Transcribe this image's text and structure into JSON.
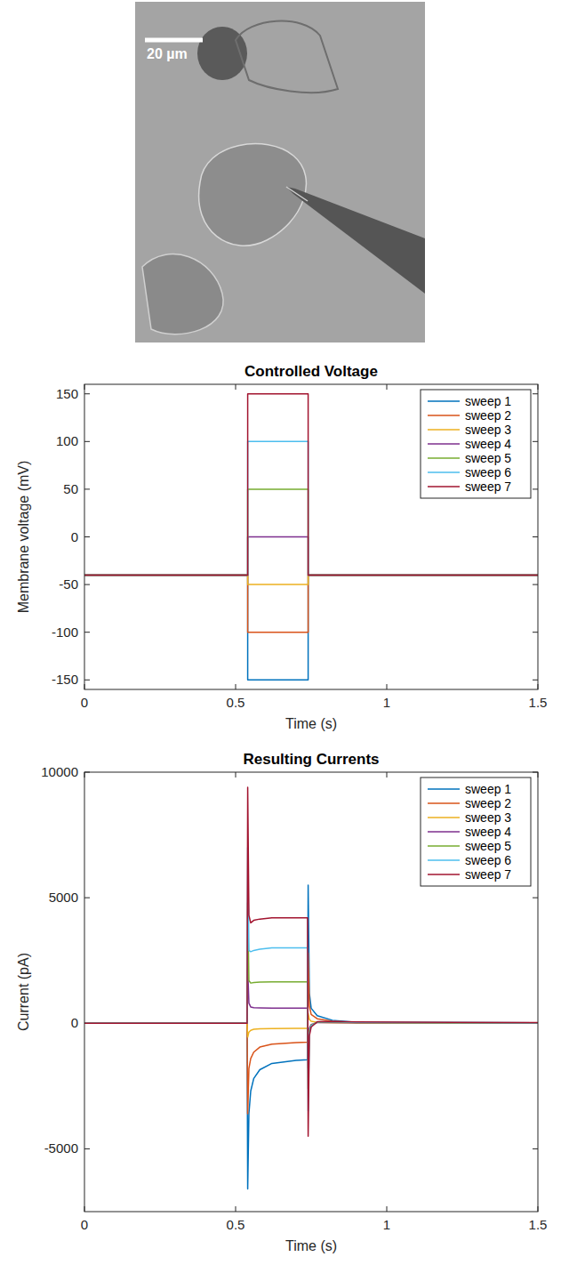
{
  "image": {
    "scale_bar": "20 µm"
  },
  "chart_data": [
    {
      "type": "line",
      "title": "Controlled Voltage",
      "x_label": "Time (s)",
      "y_label": "Membrane voltage (mV)",
      "xlim": [
        0,
        1.5
      ],
      "xticks": [
        0,
        0.5,
        1,
        1.5
      ],
      "ylim": [
        -160,
        160
      ],
      "yticks": [
        -150,
        -100,
        -50,
        0,
        50,
        100,
        150
      ],
      "grid": false,
      "legend": "northeast",
      "x": [
        0,
        0.54,
        0.54,
        0.74,
        0.74,
        1.5
      ],
      "series": [
        {
          "name": "sweep 1",
          "color": "#0072BD",
          "values": [
            -40,
            -40,
            -150,
            -150,
            -40,
            -40
          ]
        },
        {
          "name": "sweep 2",
          "color": "#D95319",
          "values": [
            -40,
            -40,
            -100,
            -100,
            -40,
            -40
          ]
        },
        {
          "name": "sweep 3",
          "color": "#EDB120",
          "values": [
            -40,
            -40,
            -50,
            -50,
            -40,
            -40
          ]
        },
        {
          "name": "sweep 4",
          "color": "#7E2F8E",
          "values": [
            -40,
            -40,
            0,
            0,
            -40,
            -40
          ]
        },
        {
          "name": "sweep 5",
          "color": "#77AC30",
          "values": [
            -40,
            -40,
            50,
            50,
            -40,
            -40
          ]
        },
        {
          "name": "sweep 6",
          "color": "#4DBEEE",
          "values": [
            -40,
            -40,
            100,
            100,
            -40,
            -40
          ]
        },
        {
          "name": "sweep 7",
          "color": "#A2142F",
          "values": [
            -40,
            -40,
            150,
            150,
            -40,
            -40
          ]
        }
      ]
    },
    {
      "type": "line",
      "title": "Resulting Currents",
      "x_label": "Time (s)",
      "y_label": "Current (pA)",
      "xlim": [
        0,
        1.5
      ],
      "xticks": [
        0,
        0.5,
        1,
        1.5
      ],
      "ylim": [
        -7500,
        10000
      ],
      "yticks": [
        -5000,
        0,
        5000,
        10000
      ],
      "grid": false,
      "legend": "northeast",
      "x": [
        0,
        0.538,
        0.54,
        0.544,
        0.55,
        0.56,
        0.58,
        0.62,
        0.7,
        0.738,
        0.74,
        0.744,
        0.75,
        0.77,
        0.82,
        0.9,
        1.5
      ],
      "series": [
        {
          "name": "sweep 1",
          "color": "#0072BD",
          "values": [
            0,
            0,
            -6600,
            -3600,
            -2700,
            -2200,
            -1850,
            -1600,
            -1480,
            -1450,
            5500,
            1200,
            600,
            300,
            120,
            40,
            20
          ]
        },
        {
          "name": "sweep 2",
          "color": "#D95319",
          "values": [
            0,
            0,
            -3600,
            -1800,
            -1400,
            -1150,
            -950,
            -830,
            -770,
            -750,
            2800,
            700,
            350,
            180,
            80,
            30,
            15
          ]
        },
        {
          "name": "sweep 3",
          "color": "#EDB120",
          "values": [
            0,
            0,
            -550,
            -350,
            -280,
            -240,
            -220,
            -210,
            -200,
            -200,
            400,
            150,
            80,
            40,
            20,
            10,
            5
          ]
        },
        {
          "name": "sweep 4",
          "color": "#7E2F8E",
          "values": [
            0,
            0,
            2200,
            800,
            650,
            620,
            610,
            600,
            600,
            600,
            -1800,
            -200,
            -50,
            30,
            30,
            20,
            10
          ]
        },
        {
          "name": "sweep 5",
          "color": "#77AC30",
          "values": [
            0,
            0,
            4800,
            1700,
            1600,
            1620,
            1640,
            1650,
            1650,
            1650,
            -2600,
            -300,
            -80,
            40,
            50,
            30,
            15
          ]
        },
        {
          "name": "sweep 6",
          "color": "#4DBEEE",
          "values": [
            0,
            0,
            7000,
            2900,
            2850,
            2900,
            2950,
            3000,
            3000,
            3000,
            -3500,
            -400,
            -100,
            50,
            60,
            40,
            20
          ]
        },
        {
          "name": "sweep 7",
          "color": "#A2142F",
          "values": [
            0,
            0,
            9400,
            4300,
            4000,
            4100,
            4150,
            4200,
            4200,
            4200,
            -4500,
            -500,
            -150,
            60,
            70,
            50,
            25
          ]
        }
      ]
    }
  ]
}
